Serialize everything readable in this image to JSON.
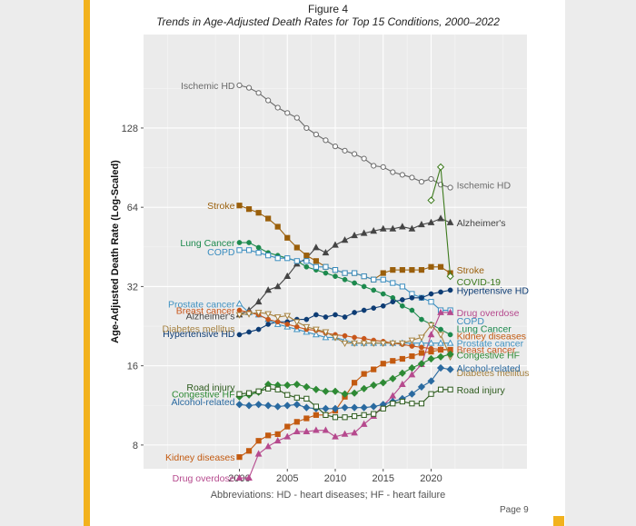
{
  "figure": {
    "label": "Figure 4",
    "title": "Trends in Age-Adjusted Death Rates for Top 15 Conditions, 2000–2022",
    "footnote": "Abbreviations: HD - heart diseases; HF - heart failure",
    "page": "Page 9"
  },
  "colors": {
    "panel": "#ebebeb",
    "grid": "#ffffff",
    "accent": "#f2b21e"
  },
  "chart_data": {
    "type": "line",
    "title": "Trends in Age-Adjusted Death Rates for Top 15 Conditions, 2000–2022",
    "xlabel": "",
    "ylabel": "Age-Adjusted Death Rate (Log-Scaled)",
    "y_scale": "log2",
    "xlim": [
      1990,
      2030
    ],
    "ylim": [
      6.5,
      290
    ],
    "x_ticks": [
      2000,
      2005,
      2010,
      2015,
      2020
    ],
    "y_ticks": [
      8,
      16,
      32,
      64,
      128
    ],
    "grid": true,
    "legend": "direct labels at line ends",
    "series": [
      {
        "name": "Ischemic HD",
        "start_label": "Ischemic HD",
        "end_label": "Ischemic HD",
        "color": "#6b6b6b",
        "marker": "circle-open",
        "x_start": 2000,
        "values": [
          186,
          182,
          174,
          163,
          153,
          146,
          140,
          128,
          121,
          115,
          109,
          105,
          102,
          98,
          92,
          91,
          87,
          85,
          83,
          80,
          82,
          78,
          76
        ]
      },
      {
        "name": "Alzheimer's",
        "start_label": "Alzheimer's",
        "end_label": "Alzheimer's",
        "color": "#444444",
        "marker": "triangle",
        "x_start": 2000,
        "values": [
          25,
          26,
          28,
          31,
          32,
          35,
          39,
          41,
          45,
          43,
          46,
          48,
          50,
          51,
          52,
          53,
          53,
          54,
          53,
          55,
          56,
          58,
          56
        ]
      },
      {
        "name": "Stroke",
        "start_label": "Stroke",
        "end_label": "Stroke",
        "color": "#9a5f0b",
        "marker": "square",
        "x_start": 2000,
        "values": [
          65,
          63,
          61,
          58,
          54,
          49,
          45,
          42,
          40,
          38,
          37,
          36,
          36,
          35,
          34,
          36,
          37,
          37,
          37,
          37,
          38,
          38,
          36
        ]
      },
      {
        "name": "COVID-19",
        "start_label": "",
        "end_label": "COVID-19",
        "color": "#3c7a1c",
        "marker": "diamond-open",
        "x_start": 2020,
        "values": [
          68,
          91,
          35
        ]
      },
      {
        "name": "Lung Cancer",
        "start_label": "Lung Cancer",
        "end_label": "Lung Cancer",
        "color": "#1d8a4e",
        "marker": "dot",
        "x_start": 2000,
        "values": [
          47,
          47,
          45,
          43,
          42,
          41,
          40,
          38,
          37,
          36,
          35,
          34,
          33,
          32,
          31,
          30,
          29,
          27,
          26,
          24,
          23,
          22,
          21
        ]
      },
      {
        "name": "COPD",
        "start_label": "COPD",
        "end_label": "COPD",
        "color": "#3a8dbf",
        "marker": "square-open",
        "x_start": 2000,
        "values": [
          44,
          44,
          43,
          42,
          41,
          41,
          40,
          40,
          38,
          38,
          37,
          36,
          36,
          35,
          34,
          34,
          33,
          32,
          30,
          29,
          28,
          26,
          26
        ]
      },
      {
        "name": "Hypertensive HD",
        "start_label": "Hypertensive HD",
        "end_label": "Hypertensive HD",
        "color": "#0d3c74",
        "marker": "dot",
        "x_start": 2000,
        "values": [
          21,
          21.5,
          22,
          23,
          23.5,
          23.5,
          24,
          24,
          25,
          24.5,
          25,
          24.5,
          25.5,
          26,
          26.5,
          27,
          28,
          28.5,
          29,
          29,
          30,
          30.5,
          31
        ]
      },
      {
        "name": "Drug overdose",
        "start_label": "Drug overdose",
        "end_label": "Drug overdose",
        "color": "#b64a8e",
        "marker": "triangle",
        "x_start": 2000,
        "values": [
          6,
          6,
          7.4,
          7.9,
          8.3,
          8.6,
          9,
          9,
          9.1,
          9.1,
          8.6,
          8.8,
          8.9,
          9.6,
          10.3,
          11.3,
          12.3,
          13.6,
          14.8,
          16.2,
          21,
          25.5,
          25.5
        ]
      },
      {
        "name": "Kidney diseases",
        "start_label": "Kidney diseases",
        "end_label": "Kidney diseases",
        "color": "#c35a10",
        "marker": "square",
        "x_start": 2000,
        "values": [
          7.2,
          7.6,
          8.3,
          8.7,
          8.8,
          9.4,
          9.8,
          10.1,
          10.4,
          10.4,
          10.8,
          12.2,
          13.8,
          14.9,
          15.5,
          16.3,
          16.7,
          17,
          17.4,
          17.9,
          18.1,
          18.4,
          18.4
        ]
      },
      {
        "name": "Prostate cancer",
        "start_label": "Prostate cancer",
        "end_label": "Prostate cancer",
        "color": "#4293c2",
        "marker": "triangle-open",
        "x_start": 2000,
        "values": [
          27.5,
          25.5,
          25,
          24,
          23,
          22.5,
          22,
          21.5,
          21,
          20.5,
          20.5,
          20,
          19.5,
          19.5,
          19.5,
          19.5,
          19.5,
          19.5,
          19.5,
          19.5,
          19.5,
          19.5,
          19.5
        ]
      },
      {
        "name": "Breast cancer",
        "start_label": "Breast cancer",
        "end_label": "Breast cancer",
        "color": "#c8561a",
        "marker": "dot",
        "x_start": 2000,
        "values": [
          26,
          25.5,
          25,
          24,
          23.5,
          23,
          22.5,
          22,
          21.8,
          21.3,
          21,
          20.8,
          20.5,
          20.3,
          20,
          19.8,
          19.5,
          19.3,
          19,
          18.8,
          18.6,
          18.5,
          18.4
        ]
      },
      {
        "name": "Diabetes mellitus",
        "start_label": "Diabetes mellitus",
        "end_label": "Diabetes mellitus",
        "color": "#a5813f",
        "marker": "triangle-down-open",
        "x_start": 2000,
        "values": [
          25,
          25.2,
          25.5,
          25.2,
          24.5,
          24.8,
          23.5,
          22.5,
          22,
          21.5,
          20.5,
          19.5,
          19.5,
          19.5,
          19.5,
          19.5,
          19.5,
          19.5,
          20,
          20.5,
          22.8,
          21,
          17.3
        ]
      },
      {
        "name": "Congestive HF",
        "start_label": "Congestive HF",
        "end_label": "Congestive HF",
        "color": "#2e8a35",
        "marker": "diamond",
        "x_start": 2000,
        "values": [
          12.2,
          12.4,
          12.7,
          13.6,
          13.5,
          13.5,
          13.6,
          13.3,
          13,
          12.8,
          12.8,
          12.5,
          12.6,
          13.1,
          13.5,
          13.8,
          14.3,
          15,
          15.7,
          16.3,
          17,
          17.3,
          17.7
        ]
      },
      {
        "name": "Alcohol-related",
        "start_label": "Alcohol-related",
        "end_label": "Alcohol-related",
        "color": "#2a6aa0",
        "marker": "diamond",
        "x_start": 2000,
        "values": [
          11.4,
          11.3,
          11.4,
          11.3,
          11.2,
          11.3,
          11.4,
          11.1,
          11,
          11,
          11,
          11.1,
          11.1,
          11.1,
          11.2,
          11.4,
          11.7,
          12,
          12.5,
          13.3,
          14,
          15.7,
          15.5
        ]
      },
      {
        "name": "Road injury",
        "start_label": "Road injury",
        "end_label": "Road injury",
        "color": "#2c5a1c",
        "marker": "square-open",
        "x_start": 2000,
        "values": [
          12.5,
          12.6,
          12.8,
          13.1,
          13,
          12.4,
          12.1,
          12,
          11.2,
          10.4,
          10.2,
          10.2,
          10.3,
          10.4,
          10.5,
          11,
          11.5,
          11.7,
          11.5,
          11.5,
          12.5,
          13,
          13
        ]
      }
    ]
  }
}
